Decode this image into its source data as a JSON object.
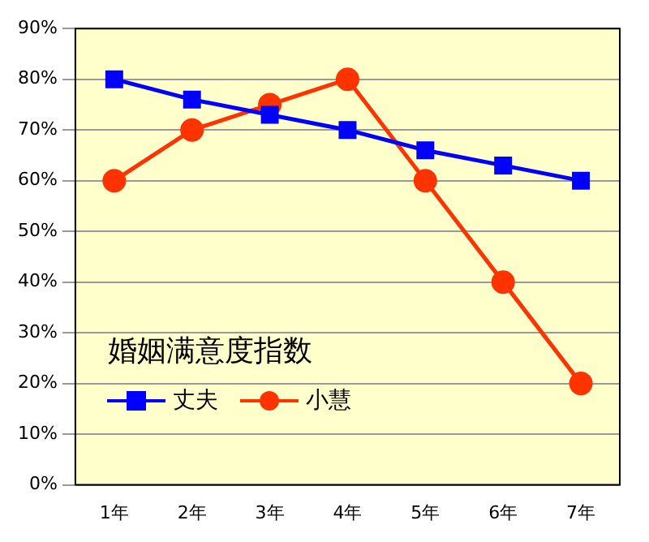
{
  "chart_data": {
    "type": "line",
    "legend_title": "婚姻满意度指数",
    "categories": [
      "1年",
      "2年",
      "3年",
      "4年",
      "5年",
      "6年",
      "7年"
    ],
    "series": [
      {
        "name": "丈夫",
        "color": "#0000ff",
        "marker": "square",
        "values": [
          80,
          76,
          73,
          70,
          66,
          63,
          60
        ]
      },
      {
        "name": "小慧",
        "color": "#ff3300",
        "marker": "circle",
        "values": [
          60,
          70,
          75,
          80,
          60,
          40,
          20
        ]
      }
    ],
    "ylim": [
      0,
      90
    ],
    "yticks": [
      {
        "value": 0,
        "label": "0%"
      },
      {
        "value": 10,
        "label": "10%"
      },
      {
        "value": 20,
        "label": "20%"
      },
      {
        "value": 30,
        "label": "30%"
      },
      {
        "value": 40,
        "label": "40%"
      },
      {
        "value": 50,
        "label": "50%"
      },
      {
        "value": 60,
        "label": "60%"
      },
      {
        "value": 70,
        "label": "70%"
      },
      {
        "value": 80,
        "label": "80%"
      },
      {
        "value": 90,
        "label": "90%"
      }
    ],
    "grid": "y",
    "legend": "bottom left",
    "line_style": "solid"
  }
}
